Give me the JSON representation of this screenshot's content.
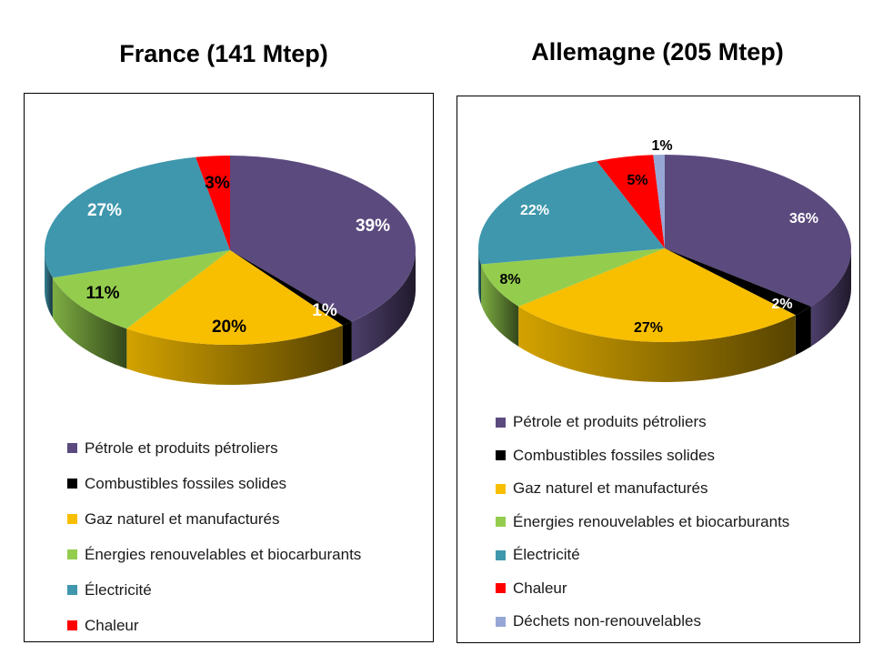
{
  "chart_data": [
    {
      "type": "pie",
      "title": "France (141 Mtep)",
      "series": [
        {
          "name": "Pétrole et produits pétroliers",
          "value": 39,
          "label": "39%",
          "color": "#5b4a7e"
        },
        {
          "name": "Combustibles fossiles solides",
          "value": 1,
          "label": "1%",
          "color": "#000000"
        },
        {
          "name": "Gaz naturel et manufacturés",
          "value": 20,
          "label": "20%",
          "color": "#f8be00"
        },
        {
          "name": "Énergies renouvelables et biocarburants",
          "value": 11,
          "label": "11%",
          "color": "#94cd4e"
        },
        {
          "name": "Électricité",
          "value": 27,
          "label": "27%",
          "color": "#3f97ad"
        },
        {
          "name": "Chaleur",
          "value": 3,
          "label": "3%",
          "color": "#ff0000"
        }
      ],
      "legend_position": "bottom"
    },
    {
      "type": "pie",
      "title": "Allemagne (205 Mtep)",
      "series": [
        {
          "name": "Pétrole et produits pétroliers",
          "value": 36,
          "label": "36%",
          "color": "#5b4a7e"
        },
        {
          "name": "Combustibles fossiles solides",
          "value": 2,
          "label": "2%",
          "color": "#000000"
        },
        {
          "name": "Gaz naturel et manufacturés",
          "value": 27,
          "label": "27%",
          "color": "#f8be00"
        },
        {
          "name": "Énergies renouvelables et biocarburants",
          "value": 8,
          "label": "8%",
          "color": "#94cd4e"
        },
        {
          "name": "Électricité",
          "value": 22,
          "label": "22%",
          "color": "#3f97ad"
        },
        {
          "name": "Chaleur",
          "value": 5,
          "label": "5%",
          "color": "#ff0000"
        },
        {
          "name": "Déchets non-renouvelables",
          "value": 1,
          "label": "1%",
          "color": "#96a7d6"
        }
      ],
      "legend_position": "bottom"
    }
  ]
}
